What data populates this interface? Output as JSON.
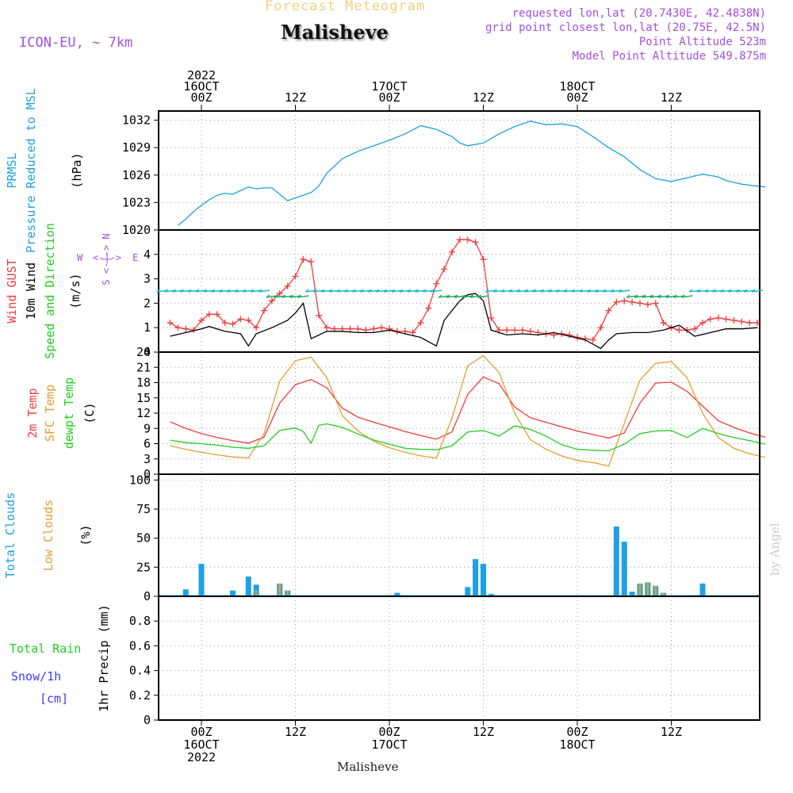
{
  "header": {
    "product": "Forecast Meteogram",
    "model": "ICON-EU, ~ 7km",
    "location": "Malisheve",
    "requested": "requested lon,lat (20.7430E, 42.4838N)",
    "grid_point": "grid point closest lon,lat (20.75E, 42.5N)",
    "point_altitude": "Point Altitude 523m",
    "model_altitude": "Model Point Altitude 549.875m",
    "footer": "Malisheve",
    "credit": "by Angel"
  },
  "time_axis": {
    "top_labels": [
      {
        "lines": [
          "2022",
          "16OCT",
          "00Z"
        ]
      },
      {
        "lines": [
          "12Z"
        ]
      },
      {
        "lines": [
          "17OCT",
          "00Z"
        ]
      },
      {
        "lines": [
          "12Z"
        ]
      },
      {
        "lines": [
          "18OCT",
          "00Z"
        ]
      },
      {
        "lines": [
          "12Z"
        ]
      }
    ],
    "bottom_labels": [
      {
        "lines": [
          "00Z",
          "16OCT",
          "2022"
        ]
      },
      {
        "lines": [
          "12Z"
        ]
      },
      {
        "lines": [
          "00Z",
          "17OCT"
        ]
      },
      {
        "lines": [
          "12Z"
        ]
      },
      {
        "lines": [
          "00Z",
          "18OCT"
        ]
      },
      {
        "lines": [
          "12Z"
        ]
      }
    ]
  },
  "colors": {
    "pressure": "#1ea0e6",
    "gust": "#f03c3c",
    "wind": "#000000",
    "direction": "#22cc22",
    "temp2m": "#f03c3c",
    "sfc": "#e0a030",
    "dewpt": "#22cc22",
    "total_clouds": "#1ea0e6",
    "low_clouds": "#e0a030",
    "rain": "#22cc22",
    "snow": "#3a3aff",
    "compass": "#a050e0",
    "meta": "#a050e0",
    "product": "#f0d080",
    "credit": "#cccccc"
  },
  "chart_data": [
    {
      "type": "line",
      "panel": "pressure",
      "label_lines": [
        {
          "text": "PRMSL",
          "color": "pressure"
        },
        {
          "text": "Pressure Reduced to MSL",
          "color": "pressure"
        },
        {
          "text": "(hPa)",
          "color": "wind"
        }
      ],
      "ylim": [
        1020,
        1033
      ],
      "yticks": [
        1020,
        1023,
        1026,
        1029,
        1032
      ],
      "grid": true,
      "series": [
        {
          "color": "pressure",
          "x": [
            -3,
            -2,
            -1,
            0,
            1,
            2,
            3,
            4,
            5,
            6,
            7,
            8,
            9,
            10,
            11,
            12,
            13,
            14,
            15,
            16,
            18,
            20,
            22,
            24,
            26,
            28,
            30,
            32,
            33,
            34,
            36,
            38,
            40,
            42,
            44,
            46,
            48,
            50,
            52,
            54,
            56,
            58,
            60,
            62,
            64,
            66,
            67,
            68,
            69,
            70,
            72
          ],
          "values": [
            1020.5,
            1021.2,
            1022.0,
            1022.7,
            1023.3,
            1023.8,
            1024.0,
            1023.9,
            1024.3,
            1024.7,
            1024.5,
            1024.6,
            1024.6,
            1023.9,
            1023.2,
            1023.5,
            1023.8,
            1024.1,
            1024.8,
            1026.2,
            1027.8,
            1028.6,
            1029.2,
            1029.8,
            1030.5,
            1031.4,
            1031.0,
            1030.2,
            1029.5,
            1029.2,
            1029.5,
            1030.5,
            1031.3,
            1031.9,
            1031.5,
            1031.6,
            1031.3,
            1030.2,
            1029.0,
            1028.0,
            1026.6,
            1025.6,
            1025.3,
            1025.7,
            1026.1,
            1025.8,
            1025.4,
            1025.2,
            1025.0,
            1024.9,
            1024.7
          ]
        }
      ]
    },
    {
      "type": "line",
      "panel": "wind",
      "label_lines": [
        {
          "text": "Wind GUST",
          "color": "gust"
        },
        {
          "text": "10m Wind",
          "color": "wind"
        },
        {
          "text": "Speed and Direction",
          "color": "direction"
        },
        {
          "text": "(m/s)",
          "color": "wind"
        }
      ],
      "compass": [
        "W",
        "<-|->",
        "E",
        "N",
        "S"
      ],
      "ylim": [
        0,
        5
      ],
      "yticks": [
        0,
        1,
        2,
        3,
        4
      ],
      "grid": true,
      "series": [
        {
          "color": "gust",
          "marker": "+",
          "x": [
            -4,
            -3,
            -2,
            -1,
            0,
            1,
            2,
            3,
            4,
            5,
            6,
            7,
            8,
            9,
            10,
            11,
            12,
            13,
            14,
            15,
            16,
            17,
            18,
            19,
            20,
            21,
            22,
            23,
            24,
            25,
            26,
            27,
            28,
            29,
            30,
            31,
            32,
            33,
            34,
            35,
            36,
            37,
            38,
            39,
            40,
            41,
            42,
            43,
            44,
            45,
            46,
            47,
            48,
            49,
            50,
            51,
            52,
            53,
            54,
            55,
            56,
            57,
            58,
            59,
            60,
            61,
            62,
            63,
            64,
            65,
            66,
            67,
            68,
            69,
            70,
            71
          ],
          "values": [
            1.2,
            1.0,
            0.95,
            0.9,
            1.3,
            1.55,
            1.55,
            1.2,
            1.15,
            1.35,
            1.3,
            1.0,
            1.7,
            2.1,
            2.4,
            2.7,
            3.1,
            3.8,
            3.7,
            1.5,
            1.0,
            0.95,
            0.95,
            0.95,
            0.95,
            0.9,
            0.95,
            1.0,
            0.95,
            0.85,
            0.85,
            0.8,
            1.2,
            1.8,
            2.8,
            3.4,
            4.1,
            4.6,
            4.6,
            4.5,
            3.8,
            1.4,
            0.9,
            0.9,
            0.9,
            0.9,
            0.85,
            0.8,
            0.75,
            0.7,
            0.75,
            0.7,
            0.6,
            0.55,
            0.5,
            1.0,
            1.7,
            2.05,
            2.1,
            2.05,
            2.0,
            1.95,
            2.0,
            1.2,
            1.0,
            0.9,
            0.9,
            0.95,
            1.2,
            1.35,
            1.4,
            1.35,
            1.3,
            1.25,
            1.2,
            1.2
          ]
        },
        {
          "color": "wind",
          "x": [
            -4,
            -2,
            0,
            1,
            3,
            5,
            6,
            7,
            9,
            11,
            12,
            13,
            14,
            16,
            18,
            20,
            22,
            24,
            26,
            28,
            30,
            31,
            32,
            33,
            34,
            35,
            36,
            37,
            39,
            41,
            43,
            45,
            47,
            49,
            51,
            52,
            53,
            55,
            57,
            59,
            61,
            63,
            65,
            67,
            69,
            71
          ],
          "values": [
            0.65,
            0.8,
            0.95,
            1.05,
            0.85,
            0.75,
            0.25,
            0.75,
            1.0,
            1.3,
            1.6,
            2.0,
            0.55,
            0.85,
            0.85,
            0.8,
            0.8,
            0.9,
            0.75,
            0.6,
            0.25,
            1.3,
            1.7,
            2.1,
            2.35,
            2.4,
            2.1,
            0.9,
            0.7,
            0.75,
            0.7,
            0.8,
            0.65,
            0.5,
            0.15,
            0.5,
            0.75,
            0.8,
            0.8,
            0.9,
            1.1,
            0.65,
            0.8,
            0.95,
            0.95,
            1.0
          ]
        }
      ]
    },
    {
      "type": "line",
      "panel": "temperature",
      "label_lines": [
        {
          "text": "2m Temp",
          "color": "temp2m"
        },
        {
          "text": "SFC Temp",
          "color": "sfc"
        },
        {
          "text": "dewpt Temp",
          "color": "dewpt"
        },
        {
          "text": "(C)",
          "color": "wind"
        }
      ],
      "ylim": [
        0,
        24
      ],
      "yticks": [
        0,
        3,
        6,
        9,
        12,
        15,
        18,
        21,
        24
      ],
      "grid": true,
      "series": [
        {
          "color": "temp2m",
          "x": [
            -4,
            -2,
            0,
            2,
            4,
            6,
            8,
            10,
            12,
            14,
            16,
            18,
            20,
            22,
            24,
            26,
            28,
            30,
            32,
            34,
            36,
            38,
            40,
            42,
            44,
            46,
            48,
            50,
            52,
            54,
            56,
            58,
            60,
            62,
            64,
            66,
            68,
            70,
            72
          ],
          "values": [
            10.3,
            9.0,
            8.0,
            7.2,
            6.6,
            6.1,
            7.3,
            14.0,
            17.6,
            18.6,
            17.0,
            13.0,
            11.2,
            10.2,
            9.3,
            8.4,
            7.6,
            6.9,
            8.3,
            15.7,
            19.1,
            17.8,
            13.2,
            11.1,
            10.2,
            9.3,
            8.5,
            7.8,
            7.1,
            8.1,
            14.0,
            17.9,
            18.1,
            16.3,
            13.4,
            10.5,
            9.2,
            8.1,
            7.3
          ]
        },
        {
          "color": "sfc",
          "x": [
            -4,
            -2,
            0,
            2,
            4,
            6,
            8,
            10,
            12,
            14,
            16,
            18,
            20,
            22,
            24,
            26,
            28,
            30,
            32,
            34,
            36,
            38,
            40,
            42,
            44,
            46,
            48,
            50,
            52,
            54,
            56,
            58,
            60,
            62,
            64,
            66,
            68,
            70,
            72
          ],
          "values": [
            5.6,
            4.9,
            4.3,
            3.8,
            3.4,
            3.2,
            8.0,
            18.3,
            22.3,
            23.0,
            19.0,
            11.5,
            8.5,
            6.5,
            5.2,
            4.3,
            3.6,
            3.2,
            11.0,
            21.3,
            23.3,
            20.0,
            12.0,
            6.8,
            4.9,
            3.6,
            2.7,
            2.3,
            1.6,
            10.0,
            18.5,
            21.8,
            22.1,
            19.0,
            12.0,
            7.2,
            5.1,
            4.0,
            3.3
          ]
        },
        {
          "color": "dewpt",
          "x": [
            -4,
            -2,
            0,
            2,
            4,
            6,
            8,
            10,
            12,
            13,
            14,
            15,
            16,
            18,
            20,
            22,
            24,
            26,
            28,
            30,
            32,
            34,
            36,
            38,
            40,
            42,
            44,
            46,
            48,
            50,
            52,
            54,
            56,
            58,
            60,
            62,
            64,
            66,
            68,
            70,
            72
          ],
          "values": [
            6.7,
            6.2,
            6.0,
            5.7,
            5.3,
            5.1,
            5.6,
            8.6,
            9.1,
            8.4,
            6.1,
            9.6,
            9.9,
            9.2,
            7.9,
            6.7,
            5.9,
            5.1,
            4.9,
            4.8,
            5.6,
            8.3,
            8.6,
            7.5,
            9.5,
            8.8,
            7.5,
            5.8,
            4.9,
            4.7,
            4.6,
            5.9,
            8.0,
            8.5,
            8.6,
            7.2,
            9.0,
            8.0,
            7.2,
            6.6,
            5.9
          ]
        }
      ]
    },
    {
      "type": "bar",
      "panel": "clouds",
      "label_lines": [
        {
          "text": "Total Clouds",
          "color": "total_clouds"
        },
        {
          "text": "Low Clouds",
          "color": "low_clouds"
        },
        {
          "text": "(%)",
          "color": "wind"
        }
      ],
      "ylim": [
        0,
        105
      ],
      "yticks": [
        0,
        25,
        50,
        75,
        100
      ],
      "grid": true,
      "x": [
        -2,
        -1,
        0,
        1,
        2,
        3,
        4,
        5,
        6,
        7,
        8,
        9,
        10,
        11,
        12,
        13,
        14,
        15,
        16,
        17,
        18,
        19,
        20,
        21,
        22,
        23,
        24,
        25,
        26,
        27,
        28,
        29,
        30,
        31,
        32,
        33,
        34,
        35,
        36,
        37,
        38,
        39,
        40,
        41,
        42,
        43,
        44,
        45,
        46,
        47,
        48,
        49,
        50,
        51,
        52,
        53,
        54,
        55,
        56,
        57,
        58,
        59,
        60,
        61,
        62,
        63,
        64,
        65,
        66,
        67,
        68,
        69,
        70,
        71
      ],
      "series": [
        {
          "name": "Total Clouds",
          "color": "total_clouds",
          "values": [
            6,
            0,
            28,
            0,
            0,
            0,
            5,
            0,
            17,
            10,
            0,
            0,
            11,
            5,
            0,
            0,
            0,
            0,
            0,
            0,
            0,
            0,
            0,
            0,
            0,
            0,
            0,
            3,
            0,
            0,
            0,
            0,
            0,
            0,
            1,
            1,
            8,
            32,
            28,
            2,
            0,
            0,
            0,
            0,
            0,
            0,
            0,
            0,
            0,
            0,
            0,
            0,
            0,
            0,
            0,
            60,
            47,
            4,
            11,
            12,
            9,
            3,
            0,
            0,
            0,
            0,
            11,
            0,
            0,
            0,
            0,
            0,
            0,
            0
          ]
        },
        {
          "name": "Low Clouds",
          "color": "low_clouds",
          "values": [
            0,
            0,
            0,
            0,
            0,
            0,
            0,
            0,
            0,
            5,
            0,
            0,
            11,
            5,
            0,
            0,
            0,
            0,
            0,
            0,
            0,
            0,
            0,
            0,
            0,
            0,
            0,
            0,
            0,
            0,
            0,
            0,
            0,
            0,
            0,
            0,
            0,
            0,
            0,
            0,
            0,
            0,
            0,
            0,
            0,
            0,
            0,
            0,
            0,
            0,
            0,
            0,
            0,
            0,
            0,
            0,
            0,
            0,
            11,
            12,
            9,
            3,
            0,
            0,
            0,
            0,
            0,
            0,
            0,
            0,
            0,
            0,
            0,
            0
          ]
        }
      ]
    },
    {
      "type": "bar",
      "panel": "precip",
      "label_lines": [
        {
          "text": "Total  Rain",
          "color": "rain"
        },
        {
          "text": "Snow/1h",
          "color": "snow"
        },
        {
          "text": "[cm]",
          "color": "snow"
        },
        {
          "text": "1hr Precip (mm)",
          "color": "wind"
        }
      ],
      "ylim": [
        0,
        1.0
      ],
      "yticks": [
        0,
        0.2,
        0.4,
        0.6,
        0.8
      ],
      "ytick_labels": [
        "0",
        "0.2",
        "0.4",
        "0.6",
        "0.8"
      ],
      "grid": true,
      "series": []
    }
  ]
}
